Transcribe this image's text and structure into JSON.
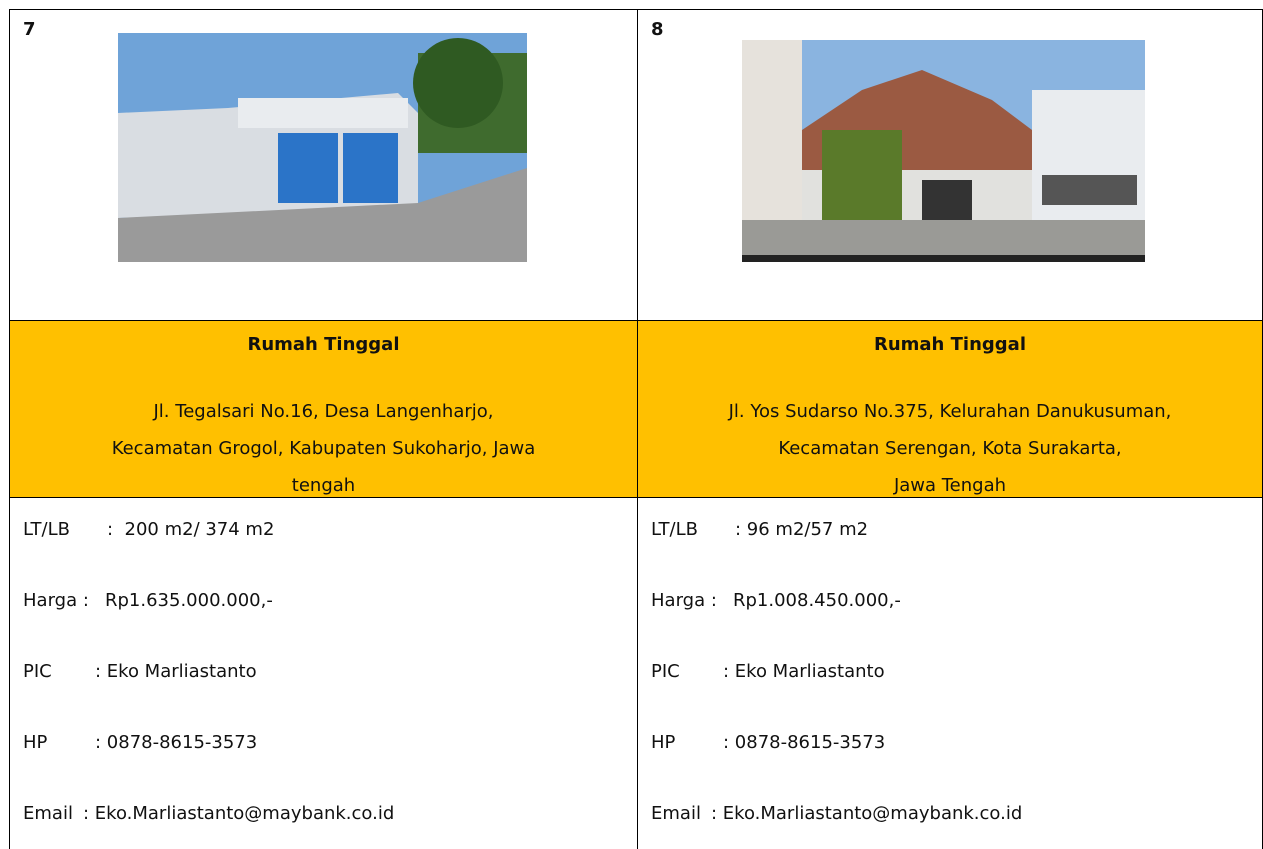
{
  "listings": [
    {
      "number": "7",
      "title": "Rumah Tinggal",
      "address": [
        "Jl. Tegalsari No.16, Desa Langenharjo,",
        "Kecamatan Grogol, Kabupaten Sukoharjo, Jawa",
        "tengah"
      ],
      "details": [
        {
          "label": "LT/LB",
          "value": ":  200 m2/ 374 m2"
        },
        {
          "label": "Harga :",
          "value": "Rp1.635.000.000,-"
        },
        {
          "label": "PIC",
          "value": ": Eko Marliastanto"
        },
        {
          "label": "HP",
          "value": ": 0878-8615-3573"
        },
        {
          "label": "Email",
          "value": ": Eko.Marliastanto@maybank.co.id"
        }
      ]
    },
    {
      "number": "8",
      "title": "Rumah Tinggal",
      "address": [
        "Jl. Yos Sudarso No.375, Kelurahan Danukusuman,",
        "Kecamatan Serengan, Kota Surakarta,",
        "Jawa Tengah"
      ],
      "details": [
        {
          "label": "LT/LB",
          "value": ": 96 m2/57 m2"
        },
        {
          "label": "Harga :",
          "value": "Rp1.008.450.000,-"
        },
        {
          "label": "PIC",
          "value": ": Eko Marliastanto"
        },
        {
          "label": "HP",
          "value": ": 0878-8615-3573"
        },
        {
          "label": "Email",
          "value": ": Eko.Marliastanto@maybank.co.id"
        }
      ]
    }
  ]
}
